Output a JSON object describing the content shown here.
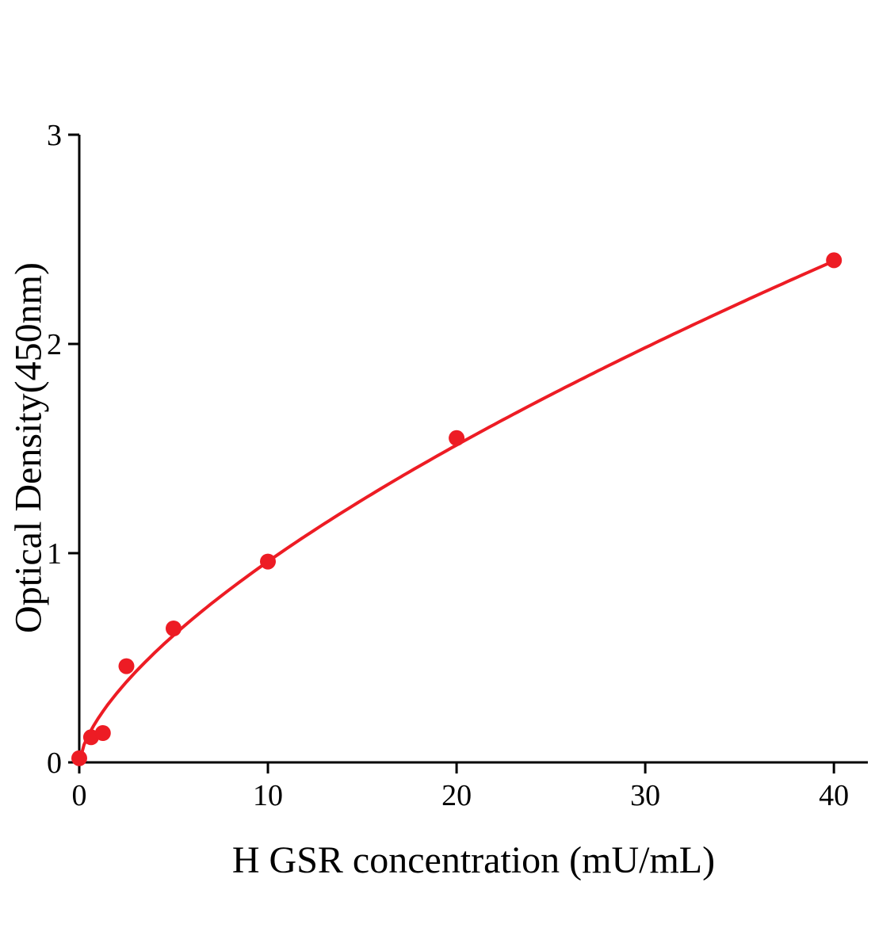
{
  "chart_data": {
    "type": "scatter",
    "title": "",
    "xlabel": "H GSR concentration (mU/mL)",
    "ylabel": "Optical Density(450nm)",
    "x": [
      0,
      0.625,
      1.25,
      2.5,
      5,
      10,
      20,
      40
    ],
    "y": [
      0.02,
      0.12,
      0.14,
      0.46,
      0.64,
      0.96,
      1.55,
      2.4
    ],
    "xticks": [
      0,
      10,
      20,
      30,
      40
    ],
    "yticks": [
      0,
      1,
      2,
      3
    ],
    "xlim": [
      0,
      41.8
    ],
    "ylim": [
      0,
      3
    ],
    "grid": false,
    "legend": "none",
    "marker_color": "#ed1c24",
    "line_color": "#ed1c24",
    "axis_color": "#000000",
    "fit_curve": {
      "type": "power",
      "a": 0.21,
      "b": 0.66
    }
  }
}
